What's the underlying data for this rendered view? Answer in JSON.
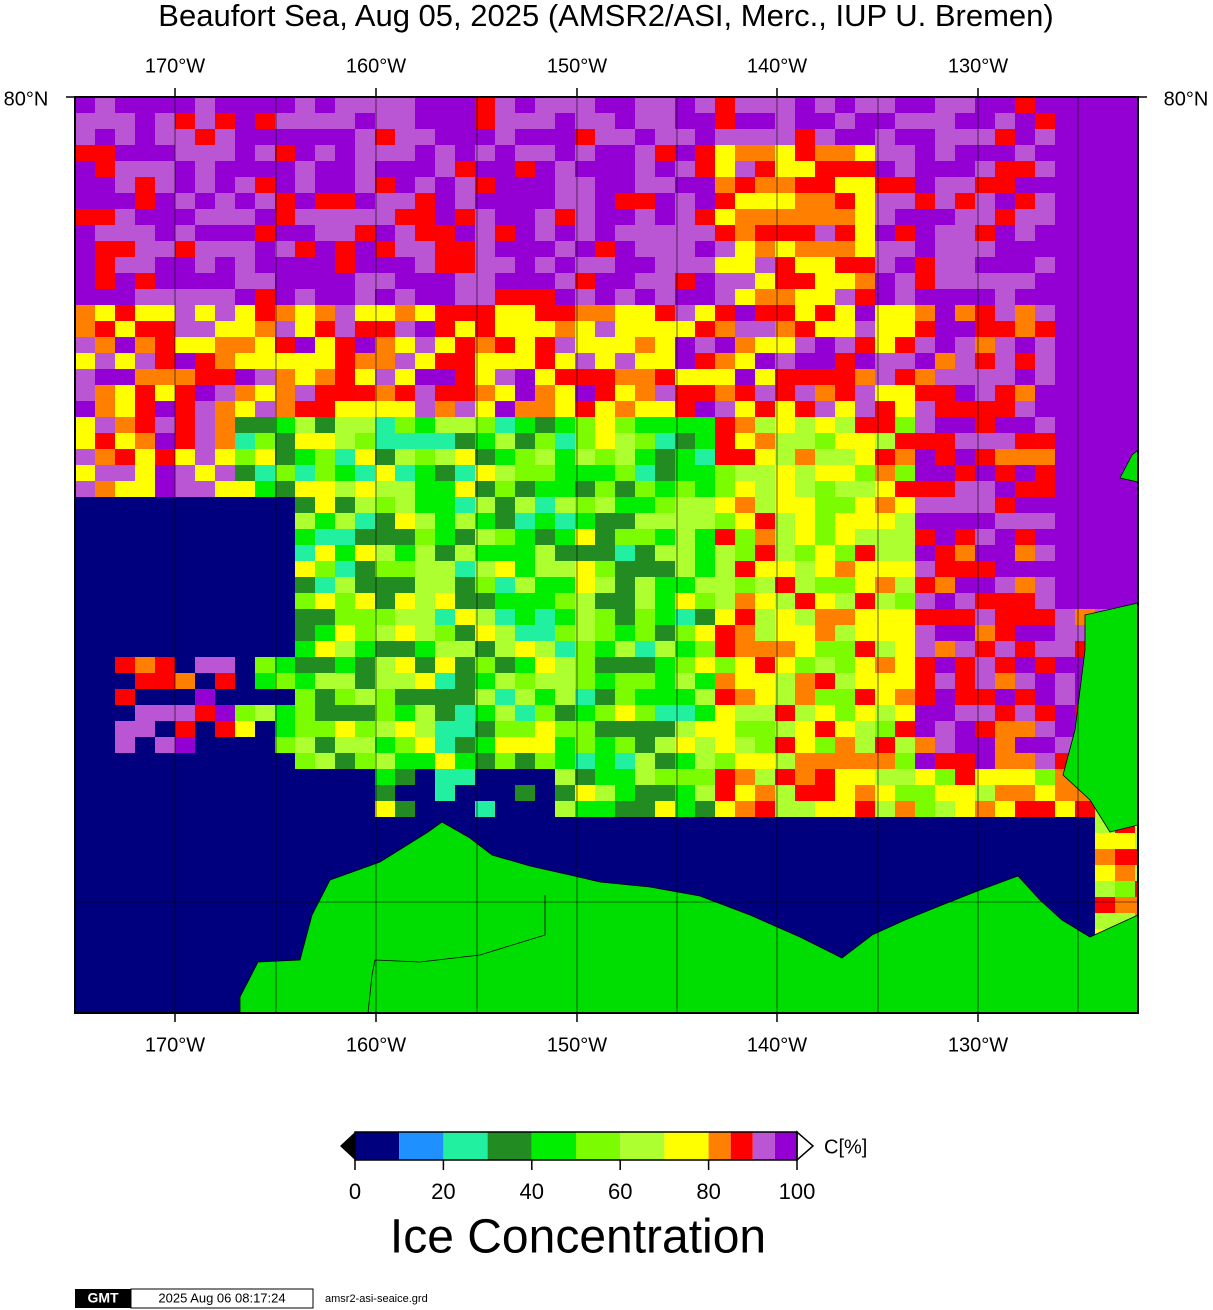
{
  "title": "Beaufort Sea, Aug 05, 2025 (AMSR2/ASI, Merc., IUP U. Bremen)",
  "map": {
    "lon_labels": [
      "170°W",
      "160°W",
      "150°W",
      "140°W",
      "130°W"
    ],
    "lat_labels": [
      "80°N"
    ]
  },
  "colorbar": {
    "unit": "C[%]",
    "title": "Ice Concentration",
    "ticks": [
      0,
      20,
      40,
      60,
      80,
      100
    ],
    "levels": [
      0,
      10,
      20,
      30,
      40,
      50,
      60,
      70,
      80,
      85,
      90,
      95,
      100
    ],
    "colors": [
      "#00007f",
      "#1e90ff",
      "#20f0a0",
      "#228b22",
      "#00ee00",
      "#7cfc00",
      "#adff2f",
      "#ffff00",
      "#ff8000",
      "#ff0000",
      "#ba55d3",
      "#9400d3"
    ]
  },
  "footer": {
    "logo": "GMT",
    "timestamp": "2025 Aug 06 08:17:24",
    "file": "amsr2-asi-seaice.grd"
  }
}
